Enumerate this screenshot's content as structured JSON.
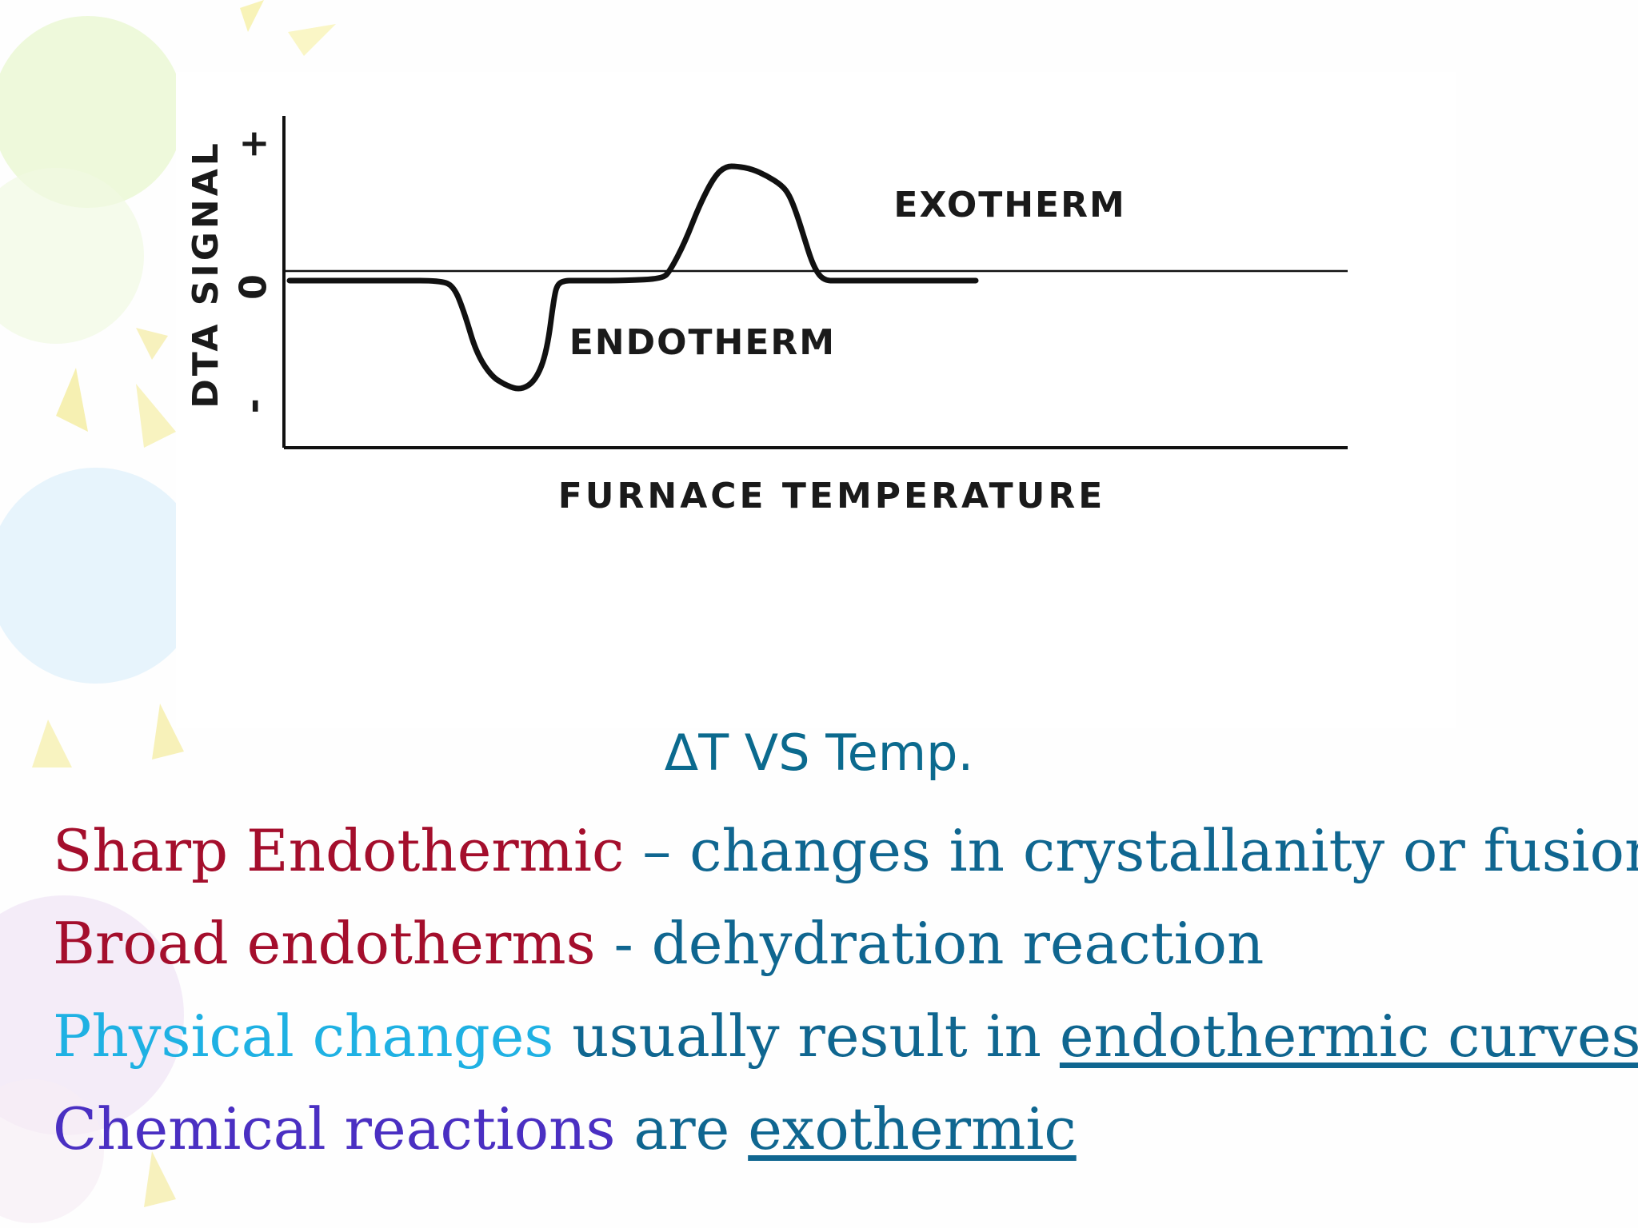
{
  "chart_data": {
    "type": "line",
    "title": "",
    "xlabel": "FURNACE TEMPERATURE",
    "ylabel": "DTA SIGNAL",
    "y_tick_labels": [
      "+",
      "0",
      "-"
    ],
    "ylim": [
      -1.3,
      1.3
    ],
    "xlim": [
      0,
      100
    ],
    "grid": false,
    "baseline": 0,
    "series": [
      {
        "values_x": [
          0,
          5,
          10,
          15,
          20,
          22,
          23.5,
          25,
          27,
          29,
          31,
          33,
          34.5,
          35.5,
          36,
          37,
          38,
          41,
          45,
          50,
          51,
          53,
          55,
          57,
          58.5,
          60,
          62,
          64,
          66,
          67,
          68,
          69,
          70,
          71,
          72,
          73,
          75,
          80,
          85,
          90,
          92
        ],
        "values_y": [
          -0.05,
          -0.05,
          -0.05,
          -0.05,
          -0.05,
          -0.1,
          -0.4,
          -0.8,
          -1.05,
          -1.15,
          -1.2,
          -1.1,
          -0.8,
          -0.2,
          -0.08,
          -0.05,
          -0.05,
          -0.05,
          -0.05,
          -0.03,
          0.05,
          0.35,
          0.75,
          1.05,
          1.15,
          1.15,
          1.12,
          1.05,
          0.95,
          0.85,
          0.65,
          0.4,
          0.15,
          0.0,
          -0.05,
          -0.05,
          -0.05,
          -0.05,
          -0.05,
          -0.05,
          -0.05
        ]
      }
    ],
    "annotations": [
      {
        "text": "EXOTHERM",
        "x": 81,
        "y": 0.72
      },
      {
        "text": "ENDOTHERM",
        "x": 37.5,
        "y": -0.72
      }
    ]
  },
  "caption": "ΔT VS Temp.",
  "lines": [
    {
      "parts": [
        {
          "text": "Sharp Endothermic",
          "color": "#a40e2c"
        },
        {
          "text": " – changes in crystallanity or fusion",
          "color": "#0f6690"
        }
      ]
    },
    {
      "parts": [
        {
          "text": "Broad endotherms ",
          "color": "#a40e2c"
        },
        {
          "text": " -  dehydration reaction",
          "color": "#0f6690"
        }
      ]
    },
    {
      "parts": [
        {
          "text": "Physical changes",
          "color": "#1fb1e3"
        },
        {
          "text": " usually result in ",
          "color": "#0f6690"
        },
        {
          "text": "endothermic curves",
          "color": "#0f6690",
          "underline": true
        }
      ]
    },
    {
      "parts": [
        {
          "text": "Chemical reactions",
          "color": "#4a2fc2"
        },
        {
          "text": " are ",
          "color": "#0f6690"
        },
        {
          "text": "exothermic",
          "color": "#0f6690",
          "underline": true
        }
      ]
    }
  ],
  "theme_colors": {
    "caption": "#0b6a8e",
    "crimson": "#a40e2c",
    "teal": "#0f6690",
    "cyan": "#1fb1e3",
    "indigo": "#4a2fc2"
  }
}
